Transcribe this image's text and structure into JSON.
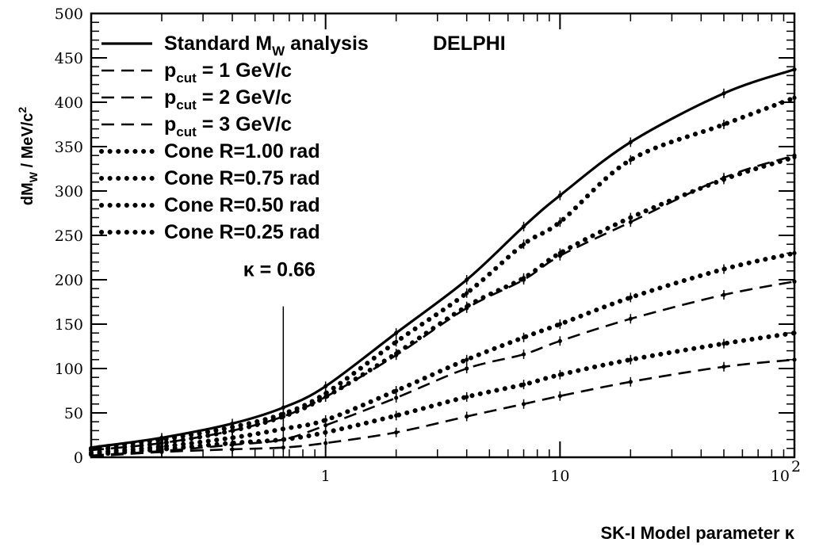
{
  "chart_data": {
    "type": "line",
    "experiment": "DELPHI",
    "xlabel": "SK-I Model parameter κ",
    "ylabel": "dM_W / MeV/c²",
    "xscale": "log",
    "xlim": [
      0.1,
      100
    ],
    "ylim": [
      0,
      500
    ],
    "x_ticks": [
      {
        "value": 1,
        "label": "1"
      },
      {
        "value": 10,
        "label": "10"
      },
      {
        "value": 100,
        "label": "10",
        "sup": "2"
      }
    ],
    "y_ticks": [
      0,
      50,
      100,
      150,
      200,
      250,
      300,
      350,
      400,
      450,
      500
    ],
    "legend_position": "top-left",
    "annotation": {
      "text": "κ = 0.66",
      "x": 0.66,
      "y_from": 0,
      "y_to": 170
    },
    "series": [
      {
        "name": "Standard M",
        "name_sub": "W",
        "name_suffix": " analysis",
        "style": "solid",
        "x": [
          0.1,
          0.2,
          0.4,
          0.66,
          1,
          2,
          4,
          7,
          10,
          20,
          50,
          100
        ],
        "y": [
          11,
          22,
          38,
          56,
          80,
          140,
          200,
          260,
          295,
          355,
          410,
          437
        ]
      },
      {
        "name": "p",
        "name_sub": "cut",
        "name_suffix": " = 1 GeV/c",
        "style": "dashed",
        "x": [
          0.1,
          0.2,
          0.4,
          0.66,
          1,
          2,
          4,
          7,
          10,
          20,
          50,
          100
        ],
        "y": [
          1,
          6,
          9,
          11,
          16,
          28,
          46,
          60,
          69,
          85,
          102,
          110
        ]
      },
      {
        "name": "p",
        "name_sub": "cut",
        "name_suffix": " = 2 GeV/c",
        "style": "dashed",
        "x": [
          0.1,
          0.2,
          0.4,
          0.66,
          1,
          2,
          4,
          7,
          10,
          20,
          50,
          100
        ],
        "y": [
          2,
          7,
          14,
          20,
          36,
          67,
          100,
          116,
          131,
          156,
          183,
          198
        ]
      },
      {
        "name": "p",
        "name_sub": "cut",
        "name_suffix": " = 3 GeV/c",
        "style": "dashed",
        "x": [
          0.1,
          0.2,
          0.4,
          0.66,
          1,
          2,
          4,
          7,
          10,
          20,
          50,
          100
        ],
        "y": [
          8,
          16,
          30,
          46,
          68,
          115,
          168,
          200,
          227,
          265,
          315,
          340
        ]
      },
      {
        "name": "Cone R=1.00 rad",
        "style": "dotted",
        "x": [
          0.1,
          0.2,
          0.4,
          0.66,
          1,
          2,
          4,
          7,
          10,
          20,
          50,
          100
        ],
        "y": [
          10,
          20,
          34,
          49,
          72,
          130,
          185,
          240,
          265,
          335,
          375,
          405
        ]
      },
      {
        "name": "Cone R=0.75 rad",
        "style": "dotted",
        "x": [
          0.1,
          0.2,
          0.4,
          0.66,
          1,
          2,
          4,
          7,
          10,
          20,
          50,
          100
        ],
        "y": [
          8,
          16,
          30,
          46,
          68,
          117,
          170,
          202,
          230,
          270,
          313,
          338
        ]
      },
      {
        "name": "Cone R=0.50 rad",
        "style": "dotted",
        "x": [
          0.1,
          0.2,
          0.4,
          0.66,
          1,
          2,
          4,
          7,
          10,
          20,
          50,
          100
        ],
        "y": [
          5,
          12,
          22,
          32,
          42,
          75,
          110,
          135,
          150,
          180,
          212,
          230
        ]
      },
      {
        "name": "Cone R=0.25 rad",
        "style": "dotted",
        "x": [
          0.1,
          0.2,
          0.4,
          0.66,
          1,
          2,
          4,
          7,
          10,
          20,
          50,
          100
        ],
        "y": [
          3,
          9,
          16,
          20,
          28,
          47,
          68,
          82,
          93,
          110,
          128,
          140
        ]
      }
    ]
  }
}
